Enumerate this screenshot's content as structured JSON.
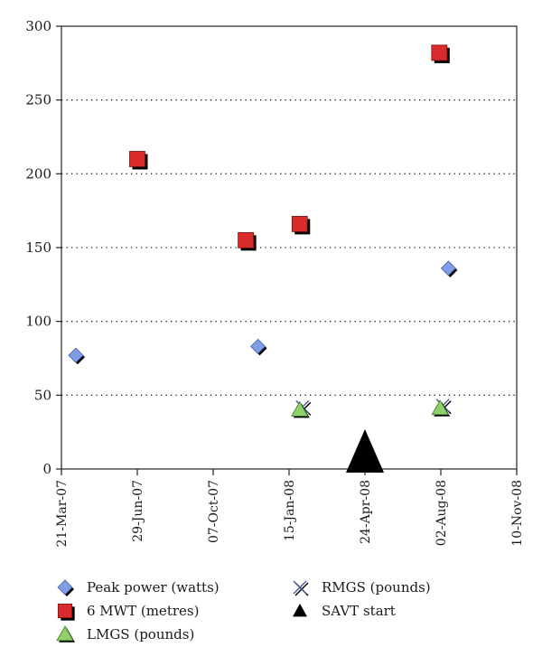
{
  "chart_data": {
    "type": "scatter",
    "x_axis": {
      "type": "date",
      "ticks": [
        "21-Mar-07",
        "29-Jun-07",
        "07-Oct-07",
        "15-Jan-08",
        "24-Apr-08",
        "02-Aug-08",
        "10-Nov-08"
      ],
      "range": [
        "2007-03-21",
        "2008-11-10"
      ]
    },
    "y_axis": {
      "range": [
        0,
        300
      ],
      "ticks": [
        0,
        50,
        100,
        150,
        200,
        250,
        300
      ]
    },
    "grid": "horizontal dotted",
    "legend_position": "bottom",
    "series": [
      {
        "name": "Peak power (watts)",
        "marker": "diamond",
        "color": "#7f9ee6",
        "points": [
          {
            "x": "2007-04-09",
            "y": 77
          },
          {
            "x": "2007-12-05",
            "y": 83
          },
          {
            "x": "2008-08-12",
            "y": 136
          }
        ]
      },
      {
        "name": "6 MWT (metres)",
        "marker": "square",
        "color": "#d92b2b",
        "points": [
          {
            "x": "2007-06-29",
            "y": 210
          },
          {
            "x": "2007-11-19",
            "y": 155
          },
          {
            "x": "2008-01-29",
            "y": 166
          },
          {
            "x": "2008-07-31",
            "y": 282
          }
        ]
      },
      {
        "name": "LMGS (pounds)",
        "marker": "triangle",
        "color": "#8fd06a",
        "points": [
          {
            "x": "2008-01-29",
            "y": 40
          },
          {
            "x": "2008-08-01",
            "y": 41
          }
        ]
      },
      {
        "name": "RMGS (pounds)",
        "marker": "x",
        "color": "#4a5a9a",
        "points": [
          {
            "x": "2008-01-29",
            "y": 42
          },
          {
            "x": "2008-08-01",
            "y": 43
          }
        ]
      },
      {
        "name": "SAVT start",
        "marker": "triangle-large",
        "color": "#000000",
        "points": [
          {
            "x": "2008-04-24",
            "y": 0
          }
        ]
      }
    ]
  }
}
